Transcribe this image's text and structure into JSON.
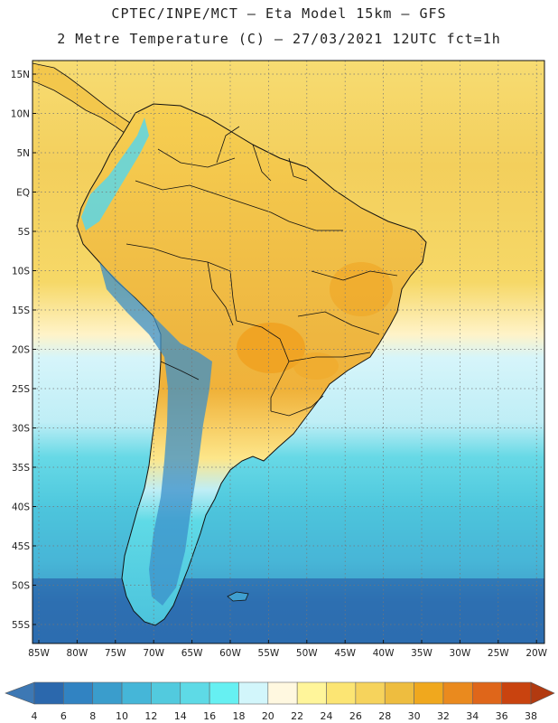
{
  "header": {
    "title": "CPTEC/INPE/MCT –  Eta Model 15km – GFS",
    "subtitle": "2 Metre Temperature (C) – 27/03/2021 12UTC fct=1h"
  },
  "map": {
    "lat_labels": [
      "15N",
      "10N",
      "5N",
      "EQ",
      "5S",
      "10S",
      "15S",
      "20S",
      "25S",
      "30S",
      "35S",
      "40S",
      "45S",
      "50S",
      "55S"
    ],
    "lon_labels": [
      "85W",
      "80W",
      "75W",
      "70W",
      "65W",
      "60W",
      "55W",
      "50W",
      "45W",
      "40W",
      "35W",
      "30W",
      "25W",
      "20W"
    ]
  },
  "colorbar": {
    "labels": [
      "4",
      "6",
      "8",
      "10",
      "12",
      "14",
      "16",
      "18",
      "20",
      "22",
      "24",
      "26",
      "28",
      "30",
      "32",
      "34",
      "36",
      "38"
    ],
    "colors": [
      "#2b68ad",
      "#3183c2",
      "#3a9dcc",
      "#45b6d8",
      "#52cade",
      "#5edae6",
      "#66f0f2",
      "#d2f6fb",
      "#fff8e0",
      "#fff59a",
      "#fce573",
      "#f6d35c",
      "#eebd3f",
      "#f0a81e",
      "#ea8a1e",
      "#df661a",
      "#c9430f"
    ],
    "end_low": "#3d78b4",
    "end_high": "#b23a10"
  }
}
